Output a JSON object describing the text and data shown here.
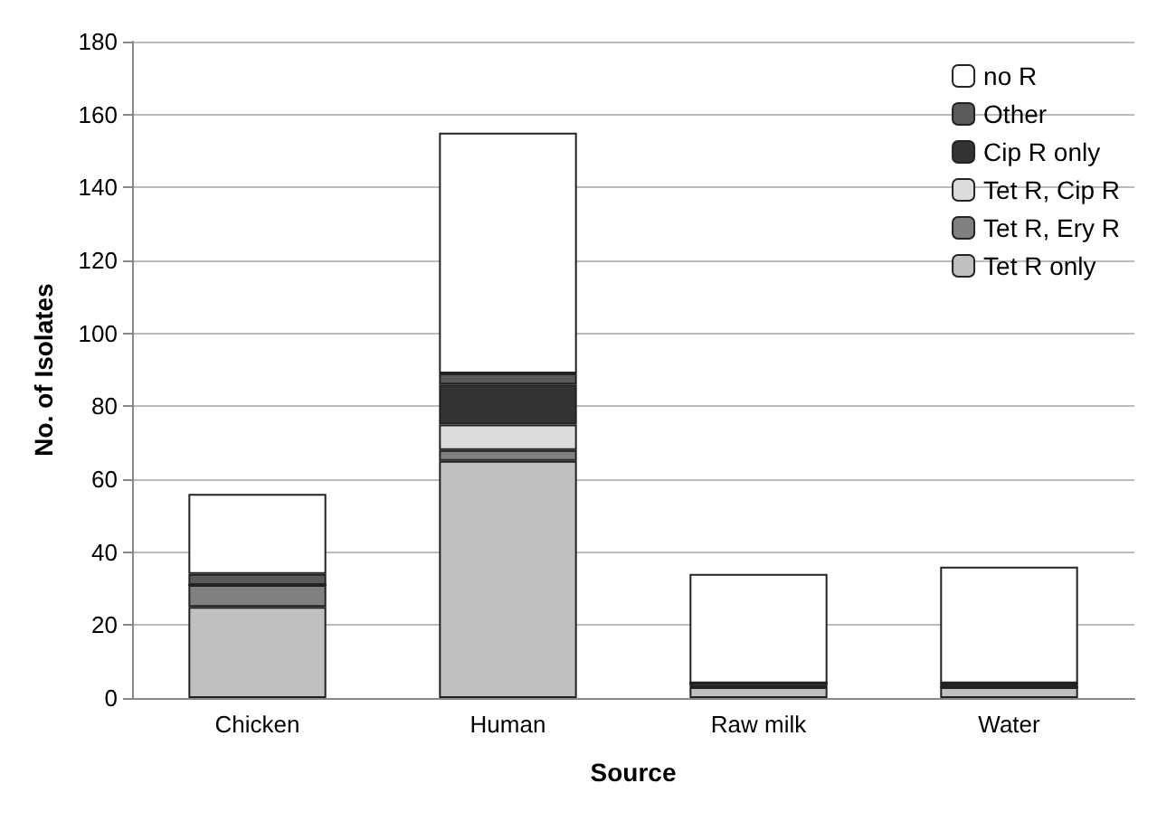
{
  "chart_data": {
    "type": "bar",
    "stacked": true,
    "xlabel": "Source",
    "ylabel": "No. of Isolates",
    "categories": [
      "Chicken",
      "Human",
      "Raw milk",
      "Water"
    ],
    "series": [
      {
        "name": "Tet R only",
        "color": "#c0c0c0",
        "values": [
          25,
          65,
          3,
          3
        ]
      },
      {
        "name": "Tet R, Ery R",
        "color": "#808080",
        "values": [
          6,
          3,
          1,
          0
        ]
      },
      {
        "name": "Tet R, Cip R",
        "color": "#dcdcdc",
        "values": [
          0,
          7,
          0,
          0
        ]
      },
      {
        "name": "Cip R only",
        "color": "#333333",
        "values": [
          0,
          11,
          0,
          1
        ]
      },
      {
        "name": "Other",
        "color": "#5a5a5a",
        "values": [
          3,
          3,
          0,
          0
        ]
      },
      {
        "name": "no R",
        "color": "#ffffff",
        "values": [
          22,
          66,
          30,
          32
        ]
      }
    ],
    "ylim": [
      0,
      180
    ],
    "yticks": [
      0,
      20,
      40,
      60,
      80,
      100,
      120,
      140,
      160,
      180
    ],
    "grid": "y",
    "legend": "top right"
  }
}
